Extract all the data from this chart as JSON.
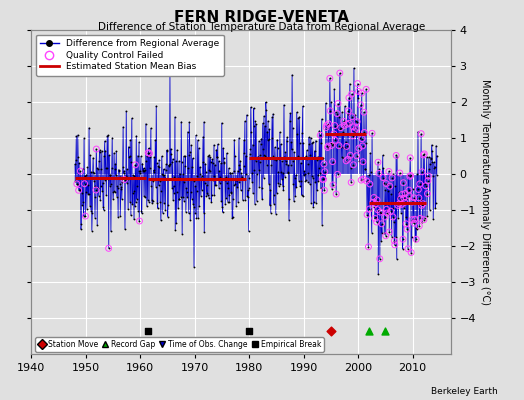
{
  "title": "FERN RIDGE-VENETA",
  "subtitle": "Difference of Station Temperature Data from Regional Average",
  "ylabel": "Monthly Temperature Anomaly Difference (°C)",
  "xlim": [
    1940,
    2017
  ],
  "ylim": [
    -5,
    4
  ],
  "yticks": [
    -4,
    -3,
    -2,
    -1,
    0,
    1,
    2,
    3,
    4
  ],
  "xticks": [
    1940,
    1950,
    1960,
    1970,
    1980,
    1990,
    2000,
    2010
  ],
  "bg_color": "#e0e0e0",
  "grid_color": "#ffffff",
  "seed": 42,
  "data_start": 1948.0,
  "data_end": 2014.5,
  "segments": [
    {
      "start": 1948.0,
      "end": 1961.0,
      "bias": -0.1
    },
    {
      "start": 1961.5,
      "end": 1979.5,
      "bias": -0.15
    },
    {
      "start": 1980.0,
      "end": 1993.5,
      "bias": 0.45
    },
    {
      "start": 1994.0,
      "end": 2001.5,
      "bias": 1.1
    },
    {
      "start": 2002.0,
      "end": 2012.5,
      "bias": -0.8
    }
  ],
  "bottom_markers": [
    {
      "type": "empirical_break",
      "year": 1961.5,
      "symbol": "s",
      "color": "#000000"
    },
    {
      "type": "empirical_break",
      "year": 1980.0,
      "symbol": "s",
      "color": "#000000"
    },
    {
      "type": "station_move",
      "year": 1995.0,
      "symbol": "D",
      "color": "#cc0000"
    },
    {
      "type": "record_gap",
      "year": 2002.0,
      "symbol": "^",
      "color": "#00aa00"
    },
    {
      "type": "record_gap",
      "year": 2005.0,
      "symbol": "^",
      "color": "#00aa00"
    }
  ],
  "line_color": "#0000cc",
  "dot_color": "#000000",
  "qc_color": "#ff44ff",
  "bias_color": "#cc0000",
  "watermark": "Berkeley Earth"
}
